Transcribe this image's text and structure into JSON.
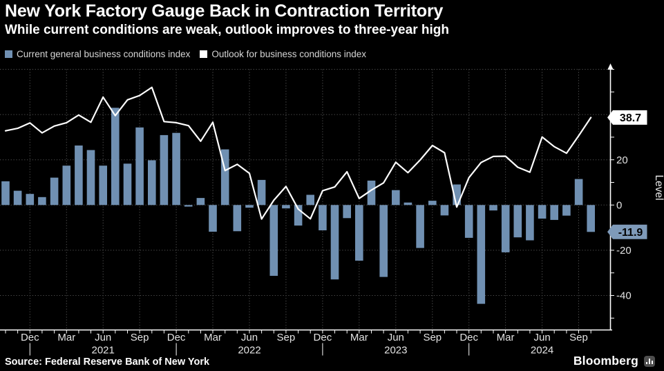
{
  "header": {
    "title": "New York Factory Gauge Back in Contraction Territory",
    "subtitle": "While current conditions are weak, outlook improves to three-year high"
  },
  "legend": {
    "items": [
      {
        "label": "Current general business conditions index",
        "color": "#7090b2"
      },
      {
        "label": "Outlook for business conditions index",
        "color": "#ffffff"
      }
    ]
  },
  "footer": {
    "source": "Source: Federal Reserve Bank of New York",
    "brand": "Bloomberg",
    "brand_icon": "bar-chart-icon"
  },
  "colors": {
    "background": "#000000",
    "bar": "#7090b2",
    "line": "#ffffff",
    "grid": "#4f4f4f",
    "axis": "#ffffff",
    "tick_text": "#e3e3e3"
  },
  "chart_data": {
    "type": "bar",
    "title": "New York Factory Gauge Back in Contraction Territory",
    "subtitle": "While current conditions are weak, outlook improves to three-year high",
    "ylabel": "Level",
    "legend_position": "top-left",
    "grid": {
      "h_values": [
        60,
        40,
        20,
        0,
        -20,
        -40
      ],
      "v_every_months": 3,
      "color": "#4f4f4f",
      "style": "dotted"
    },
    "x": [
      "Oct 2020",
      "Nov 2020",
      "Dec 2020",
      "Jan 2021",
      "Feb 2021",
      "Mar 2021",
      "Apr 2021",
      "May 2021",
      "Jun 2021",
      "Jul 2021",
      "Aug 2021",
      "Sep 2021",
      "Oct 2021",
      "Nov 2021",
      "Dec 2021",
      "Jan 2022",
      "Feb 2022",
      "Mar 2022",
      "Apr 2022",
      "May 2022",
      "Jun 2022",
      "Jul 2022",
      "Aug 2022",
      "Sep 2022",
      "Oct 2022",
      "Nov 2022",
      "Dec 2022",
      "Jan 2023",
      "Feb 2023",
      "Mar 2023",
      "Apr 2023",
      "May 2023",
      "Jun 2023",
      "Jul 2023",
      "Aug 2023",
      "Sep 2023",
      "Oct 2023",
      "Nov 2023",
      "Dec 2023",
      "Jan 2024",
      "Feb 2024",
      "Mar 2024",
      "Apr 2024",
      "May 2024",
      "Jun 2024",
      "Jul 2024",
      "Aug 2024",
      "Sep 2024",
      "Oct 2024"
    ],
    "series": [
      {
        "name": "Current general business conditions index",
        "type": "bar",
        "color": "#7090b2",
        "values": [
          10.5,
          6.3,
          4.9,
          3.5,
          12.1,
          17.4,
          26.3,
          24.3,
          17.4,
          43.0,
          18.3,
          34.3,
          19.8,
          30.9,
          31.9,
          -0.7,
          3.1,
          -11.8,
          24.6,
          -11.6,
          -1.2,
          11.1,
          -31.3,
          -1.5,
          -9.1,
          4.5,
          -11.2,
          -32.9,
          -5.8,
          -24.6,
          10.8,
          -31.8,
          6.6,
          1.1,
          -19.0,
          1.9,
          -4.6,
          9.1,
          -14.5,
          -43.7,
          -2.4,
          -20.9,
          -14.3,
          -15.6,
          -6.0,
          -6.6,
          -4.7,
          11.5,
          -11.9
        ]
      },
      {
        "name": "Outlook for business conditions index",
        "type": "line",
        "color": "#ffffff",
        "values": [
          32.8,
          33.9,
          36.3,
          31.9,
          34.9,
          36.4,
          39.8,
          36.6,
          47.7,
          39.5,
          46.5,
          48.4,
          52.0,
          36.9,
          36.4,
          35.1,
          28.2,
          36.6,
          15.2,
          18.0,
          14.0,
          -6.2,
          2.1,
          8.2,
          -1.8,
          -6.1,
          6.3,
          8.0,
          14.7,
          2.9,
          6.6,
          9.8,
          18.9,
          14.3,
          19.9,
          26.3,
          23.1,
          -0.9,
          12.1,
          18.8,
          21.5,
          21.6,
          16.7,
          14.5,
          30.1,
          25.8,
          22.9,
          30.6,
          38.7
        ]
      }
    ],
    "x_tick_labels": [
      "Dec",
      "Mar",
      "Jun",
      "Sep",
      "Dec",
      "Mar",
      "Jun",
      "Sep",
      "Dec",
      "Mar",
      "Jun",
      "Sep",
      "Dec",
      "Mar",
      "Jun",
      "Sep"
    ],
    "year_labels": [
      "2021",
      "2022",
      "2023",
      "2024"
    ],
    "y_axis": {
      "side": "right",
      "label": "Level",
      "ticks_labeled": [
        20,
        0,
        -20,
        -40
      ],
      "ticks_minor": [
        60,
        50,
        40,
        30,
        10,
        -10,
        -30,
        -50
      ],
      "ylim": [
        -55,
        61
      ],
      "arrow_top": true
    },
    "end_value_labels": [
      {
        "text": "38.7",
        "series_index": 1,
        "bg": "#ffffff",
        "fg": "#000000"
      },
      {
        "text": "-11.9",
        "series_index": 0,
        "bg": "#7e9ab9",
        "fg": "#000000"
      }
    ]
  }
}
